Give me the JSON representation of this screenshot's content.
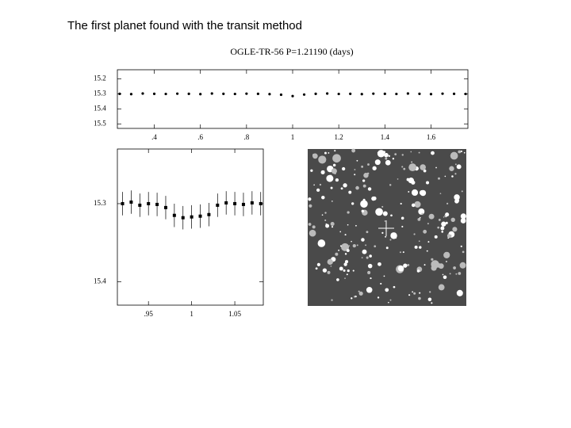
{
  "header": {
    "title": "The first planet found with the transit method"
  },
  "chart_data": [
    {
      "type": "scatter",
      "title": "OGLE-TR-56  P=1.21190 (days)",
      "x": [
        0.25,
        0.3,
        0.35,
        0.4,
        0.45,
        0.5,
        0.55,
        0.6,
        0.65,
        0.7,
        0.75,
        0.8,
        0.85,
        0.9,
        0.95,
        1.0,
        1.05,
        1.1,
        1.15,
        1.2,
        1.25,
        1.3,
        1.35,
        1.4,
        1.45,
        1.5,
        1.55,
        1.6,
        1.65,
        1.7,
        1.75
      ],
      "values": [
        15.3,
        15.302,
        15.298,
        15.3,
        15.301,
        15.299,
        15.3,
        15.302,
        15.298,
        15.3,
        15.301,
        15.299,
        15.3,
        15.302,
        15.306,
        15.315,
        15.305,
        15.3,
        15.298,
        15.301,
        15.3,
        15.302,
        15.299,
        15.3,
        15.301,
        15.298,
        15.3,
        15.302,
        15.299,
        15.3,
        15.301
      ],
      "color": "#000000",
      "xlim": [
        0.24,
        1.76
      ],
      "ylim": [
        15.53,
        15.14
      ],
      "xticks": [
        {
          "value": 0.4,
          "label": ".4"
        },
        {
          "value": 0.6,
          "label": ".6"
        },
        {
          "value": 0.8,
          "label": ".8"
        },
        1,
        1.2,
        1.4,
        1.6
      ],
      "yticks": [
        15.2,
        15.3,
        15.4,
        15.5
      ]
    },
    {
      "type": "errorbar",
      "x": [
        0.92,
        0.93,
        0.94,
        0.95,
        0.96,
        0.97,
        0.98,
        0.99,
        1.0,
        1.01,
        1.02,
        1.03,
        1.04,
        1.05,
        1.06,
        1.07,
        1.08
      ],
      "values": [
        15.3,
        15.298,
        15.302,
        15.3,
        15.301,
        15.305,
        15.315,
        15.318,
        15.317,
        15.316,
        15.314,
        15.302,
        15.299,
        15.3,
        15.301,
        15.299,
        15.3
      ],
      "errors": [
        0.015,
        0.015,
        0.015,
        0.015,
        0.015,
        0.015,
        0.015,
        0.015,
        0.015,
        0.015,
        0.015,
        0.015,
        0.015,
        0.015,
        0.015,
        0.015,
        0.015
      ],
      "color": "#000000",
      "xlim": [
        0.914,
        1.083
      ],
      "ylim": [
        15.43,
        15.23
      ],
      "xticks": [
        {
          "value": 0.95,
          "label": ".95"
        },
        1,
        1.05
      ],
      "yticks": [
        15.3,
        15.4
      ]
    }
  ]
}
